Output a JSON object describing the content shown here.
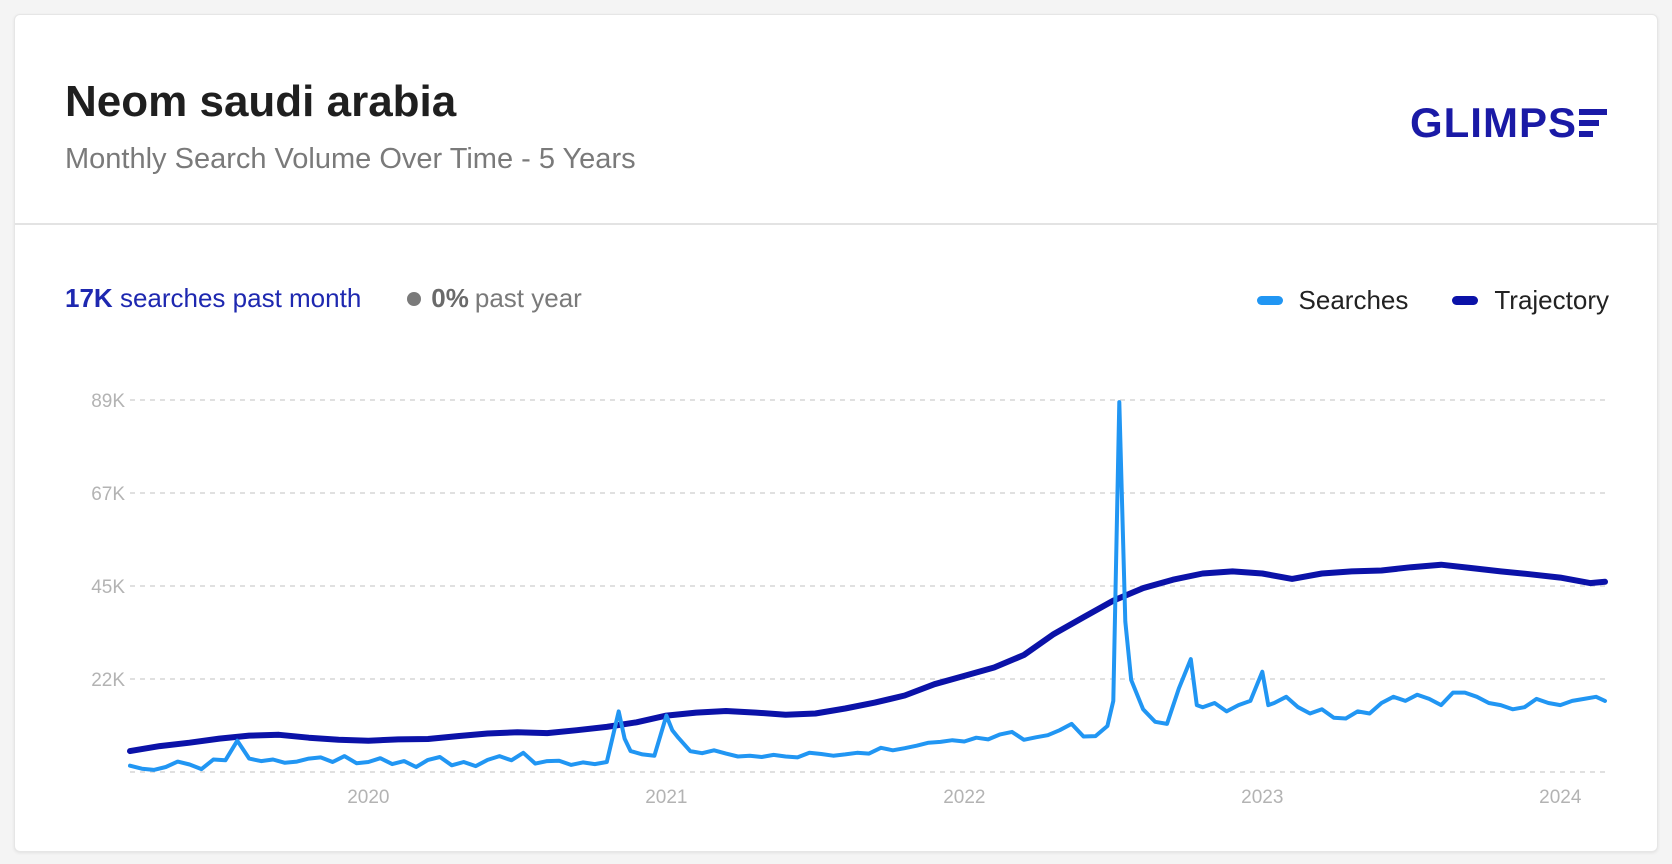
{
  "header": {
    "title": "Neom saudi arabia",
    "subtitle": "Monthly Search Volume Over Time - 5 Years",
    "logo_text": "GLIMPS"
  },
  "stats": {
    "searches_value": "17K",
    "searches_text": "searches past month",
    "change_value": "0%",
    "change_text": "past year"
  },
  "legend": {
    "searches": "Searches",
    "trajectory": "Trajectory"
  },
  "colors": {
    "searches": "#2196f3",
    "trajectory": "#0b12a8",
    "brand": "#1a1aa6"
  },
  "chart_data": {
    "type": "line",
    "title": "Neom saudi arabia",
    "subtitle": "Monthly Search Volume Over Time - 5 Years",
    "xlabel": "",
    "ylabel": "",
    "ylim": [
      0,
      89000
    ],
    "y_ticks": [
      "22K",
      "45K",
      "67K",
      "89K"
    ],
    "y_tick_values": [
      22250,
      44500,
      66750,
      89000
    ],
    "x_ticks": [
      "2020",
      "2021",
      "2022",
      "2023",
      "2024"
    ],
    "x_tick_values": [
      2020.0,
      2021.0,
      2022.0,
      2023.0,
      2024.0
    ],
    "xlim": [
      2019.2,
      2024.15
    ],
    "grid": "horizontal dashed",
    "legend_position": "top-right",
    "series": [
      {
        "name": "Searches",
        "color": "#2196f3",
        "x": [
          2019.2,
          2019.24,
          2019.28,
          2019.32,
          2019.36,
          2019.4,
          2019.44,
          2019.48,
          2019.52,
          2019.56,
          2019.6,
          2019.64,
          2019.68,
          2019.72,
          2019.76,
          2019.8,
          2019.84,
          2019.88,
          2019.92,
          2019.96,
          2020.0,
          2020.04,
          2020.08,
          2020.12,
          2020.16,
          2020.2,
          2020.24,
          2020.28,
          2020.32,
          2020.36,
          2020.4,
          2020.44,
          2020.48,
          2020.52,
          2020.56,
          2020.6,
          2020.64,
          2020.68,
          2020.72,
          2020.76,
          2020.8,
          2020.84,
          2020.86,
          2020.88,
          2020.92,
          2020.96,
          2021.0,
          2021.02,
          2021.04,
          2021.08,
          2021.12,
          2021.16,
          2021.2,
          2021.24,
          2021.28,
          2021.32,
          2021.36,
          2021.4,
          2021.44,
          2021.48,
          2021.52,
          2021.56,
          2021.6,
          2021.64,
          2021.68,
          2021.72,
          2021.76,
          2021.8,
          2021.84,
          2021.88,
          2021.92,
          2021.96,
          2022.0,
          2022.04,
          2022.08,
          2022.12,
          2022.16,
          2022.2,
          2022.24,
          2022.28,
          2022.32,
          2022.36,
          2022.4,
          2022.44,
          2022.48,
          2022.5,
          2022.52,
          2022.54,
          2022.56,
          2022.6,
          2022.64,
          2022.68,
          2022.72,
          2022.76,
          2022.78,
          2022.8,
          2022.84,
          2022.88,
          2022.92,
          2022.96,
          2023.0,
          2023.02,
          2023.04,
          2023.08,
          2023.12,
          2023.16,
          2023.2,
          2023.24,
          2023.28,
          2023.32,
          2023.36,
          2023.4,
          2023.44,
          2023.48,
          2023.52,
          2023.56,
          2023.6,
          2023.64,
          2023.68,
          2023.72,
          2023.76,
          2023.8,
          2023.84,
          2023.88,
          2023.92,
          2023.96,
          2024.0,
          2024.04,
          2024.08,
          2024.12,
          2024.15
        ],
        "y": [
          1500,
          800,
          500,
          1200,
          2500,
          1800,
          700,
          3000,
          2800,
          7500,
          3200,
          2600,
          3000,
          2200,
          2500,
          3200,
          3500,
          2400,
          3800,
          2100,
          2400,
          3300,
          1900,
          2600,
          1200,
          2900,
          3600,
          1600,
          2400,
          1400,
          2900,
          3800,
          2800,
          4600,
          2000,
          2600,
          2700,
          1700,
          2300,
          1900,
          2400,
          14500,
          8000,
          5000,
          4200,
          3900,
          13500,
          10000,
          8200,
          5000,
          4500,
          5200,
          4400,
          3700,
          3900,
          3600,
          4100,
          3700,
          3500,
          4600,
          4300,
          3900,
          4200,
          4600,
          4400,
          5800,
          5200,
          5700,
          6300,
          7000,
          7200,
          7600,
          7300,
          8200,
          7800,
          9000,
          9600,
          7700,
          8300,
          8800,
          10000,
          11500,
          8500,
          8600,
          11000,
          17000,
          88500,
          36000,
          22000,
          15000,
          12000,
          11500,
          20000,
          27000,
          16000,
          15500,
          16500,
          14500,
          16000,
          17000,
          24000,
          16000,
          16500,
          18000,
          15500,
          14000,
          15000,
          13000,
          12800,
          14500,
          14000,
          16500,
          18000,
          17000,
          18500,
          17500,
          16000,
          19000,
          19000,
          18000,
          16500,
          16000,
          15000,
          15500,
          17500,
          16500,
          16000,
          17000,
          17500,
          18000,
          17000
        ]
      },
      {
        "name": "Trajectory",
        "color": "#0b12a8",
        "x": [
          2019.2,
          2019.3,
          2019.4,
          2019.5,
          2019.6,
          2019.7,
          2019.8,
          2019.9,
          2020.0,
          2020.1,
          2020.2,
          2020.3,
          2020.4,
          2020.5,
          2020.6,
          2020.7,
          2020.8,
          2020.9,
          2021.0,
          2021.1,
          2021.2,
          2021.3,
          2021.4,
          2021.5,
          2021.6,
          2021.7,
          2021.8,
          2021.9,
          2022.0,
          2022.1,
          2022.2,
          2022.3,
          2022.4,
          2022.5,
          2022.6,
          2022.7,
          2022.8,
          2022.9,
          2023.0,
          2023.1,
          2023.2,
          2023.3,
          2023.4,
          2023.5,
          2023.6,
          2023.7,
          2023.8,
          2023.9,
          2024.0,
          2024.1,
          2024.15
        ],
        "y": [
          5000,
          6200,
          7000,
          8000,
          8700,
          8900,
          8200,
          7700,
          7500,
          7800,
          7900,
          8600,
          9200,
          9500,
          9300,
          10000,
          10800,
          11900,
          13500,
          14200,
          14600,
          14200,
          13700,
          14000,
          15200,
          16600,
          18300,
          21000,
          23000,
          25000,
          28000,
          33000,
          37000,
          41000,
          44000,
          46000,
          47500,
          48000,
          47500,
          46200,
          47500,
          48000,
          48200,
          49000,
          49600,
          48800,
          48000,
          47300,
          46500,
          45200,
          45500
        ]
      }
    ]
  }
}
